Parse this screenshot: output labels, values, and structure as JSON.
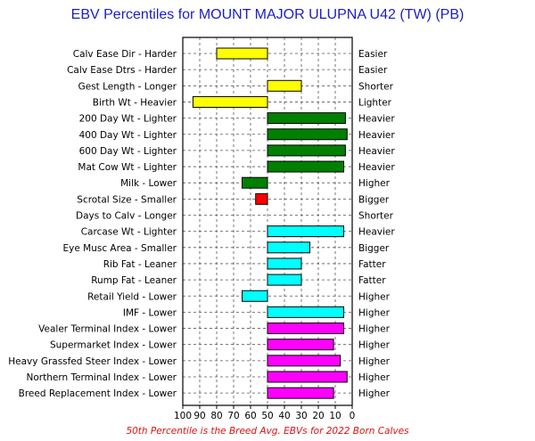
{
  "chart_data": {
    "type": "bar",
    "title": "EBV Percentiles for MOUNT MAJOR ULUPNA U42 (TW) (PB)",
    "footnote": "50th Percentile is the Breed Avg. EBVs for 2022 Born Calves",
    "xlim": [
      100,
      0
    ],
    "baseline": 50,
    "x_ticks": [
      "100",
      "90",
      "80",
      "70",
      "60",
      "50",
      "40",
      "30",
      "20",
      "10",
      "0"
    ],
    "grid": true,
    "colors": {
      "calving": "#ffff00",
      "growth": "#008000",
      "fertility": "#ff0000",
      "carcase": "#00ffff",
      "index": "#ff00ff"
    },
    "traits": [
      {
        "left": "Calv Ease Dir - Harder",
        "right": "Easier",
        "value": 80,
        "color": "#ffff00"
      },
      {
        "left": "Calv Ease Dtrs - Harder",
        "right": "Easier",
        "value": null,
        "color": "#ffff00"
      },
      {
        "left": "Gest Length - Longer",
        "right": "Shorter",
        "value": 30,
        "color": "#ffff00"
      },
      {
        "left": "Birth Wt - Heavier",
        "right": "Lighter",
        "value": 94,
        "color": "#ffff00"
      },
      {
        "left": "200 Day Wt - Lighter",
        "right": "Heavier",
        "value": 4,
        "color": "#008000"
      },
      {
        "left": "400 Day Wt - Lighter",
        "right": "Heavier",
        "value": 3,
        "color": "#008000"
      },
      {
        "left": "600 Day Wt - Lighter",
        "right": "Heavier",
        "value": 4,
        "color": "#008000"
      },
      {
        "left": "Mat Cow Wt - Lighter",
        "right": "Heavier",
        "value": 5,
        "color": "#008000"
      },
      {
        "left": "Milk - Lower",
        "right": "Higher",
        "value": 65,
        "color": "#008000"
      },
      {
        "left": "Scrotal Size - Smaller",
        "right": "Bigger",
        "value": 57,
        "color": "#ff0000"
      },
      {
        "left": "Days to Calv - Longer",
        "right": "Shorter",
        "value": null,
        "color": "#ff0000"
      },
      {
        "left": "Carcase Wt - Lighter",
        "right": "Heavier",
        "value": 5,
        "color": "#00ffff"
      },
      {
        "left": "Eye Musc Area - Smaller",
        "right": "Bigger",
        "value": 25,
        "color": "#00ffff"
      },
      {
        "left": "Rib Fat - Leaner",
        "right": "Fatter",
        "value": 30,
        "color": "#00ffff"
      },
      {
        "left": "Rump Fat - Leaner",
        "right": "Fatter",
        "value": 30,
        "color": "#00ffff"
      },
      {
        "left": "Retail Yield - Lower",
        "right": "Higher",
        "value": 65,
        "color": "#00ffff"
      },
      {
        "left": "IMF - Lower",
        "right": "Higher",
        "value": 5,
        "color": "#00ffff"
      },
      {
        "left": "Vealer Terminal Index - Lower",
        "right": "Higher",
        "value": 5,
        "color": "#ff00ff"
      },
      {
        "left": "Supermarket Index - Lower",
        "right": "Higher",
        "value": 11,
        "color": "#ff00ff"
      },
      {
        "left": "Heavy Grassfed Steer Index - Lower",
        "right": "Higher",
        "value": 7,
        "color": "#ff00ff"
      },
      {
        "left": "Northern Terminal Index - Lower",
        "right": "Higher",
        "value": 3,
        "color": "#ff00ff"
      },
      {
        "left": "Breed Replacement Index - Lower",
        "right": "Higher",
        "value": 11,
        "color": "#ff00ff"
      }
    ]
  }
}
